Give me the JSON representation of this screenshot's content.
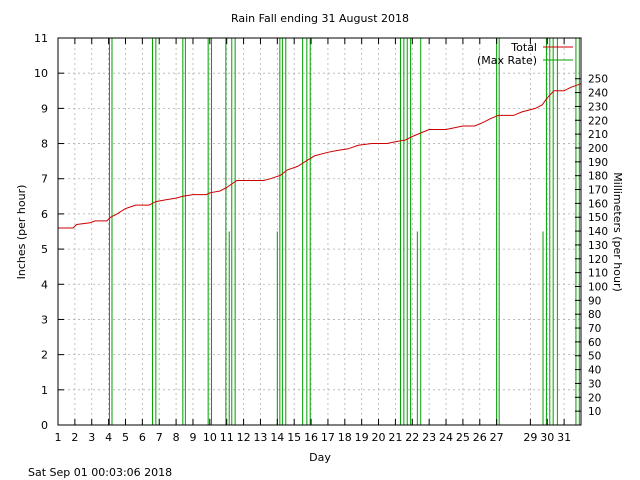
{
  "chart_data": {
    "type": "line",
    "title": "Rain Fall ending 31 August 2018",
    "xlabel": "Day",
    "ylabel": "Inches (per hour)",
    "y2label": "Millimeters (per hour)",
    "footer": "Sat Sep 01 00:03:06 2018",
    "xlim": [
      1,
      32
    ],
    "ylim": [
      0,
      11
    ],
    "y2lim": [
      0,
      279.4
    ],
    "x_ticks": [
      1,
      2,
      3,
      4,
      5,
      6,
      7,
      8,
      9,
      10,
      11,
      12,
      13,
      14,
      15,
      16,
      17,
      18,
      19,
      20,
      21,
      22,
      23,
      24,
      25,
      26,
      27,
      29,
      30,
      31
    ],
    "y_ticks": [
      0,
      1,
      2,
      3,
      4,
      5,
      6,
      7,
      8,
      9,
      10,
      11
    ],
    "y2_ticks": [
      10,
      20,
      30,
      40,
      50,
      60,
      70,
      80,
      90,
      100,
      110,
      120,
      130,
      140,
      150,
      160,
      170,
      180,
      190,
      200,
      210,
      220,
      230,
      240,
      250
    ],
    "grid": true,
    "legend_position": "top-right",
    "series": [
      {
        "name": "Total",
        "color": "#cc0000",
        "points": [
          [
            1,
            5.6
          ],
          [
            1.9,
            5.6
          ],
          [
            2.1,
            5.7
          ],
          [
            2.9,
            5.75
          ],
          [
            3.2,
            5.8
          ],
          [
            3.9,
            5.8
          ],
          [
            4.1,
            5.9
          ],
          [
            4.5,
            6.0
          ],
          [
            5.0,
            6.15
          ],
          [
            5.6,
            6.25
          ],
          [
            6.4,
            6.25
          ],
          [
            6.8,
            6.35
          ],
          [
            7.4,
            6.4
          ],
          [
            8.0,
            6.45
          ],
          [
            8.4,
            6.5
          ],
          [
            9.0,
            6.55
          ],
          [
            9.8,
            6.55
          ],
          [
            10.0,
            6.6
          ],
          [
            10.6,
            6.65
          ],
          [
            11.0,
            6.75
          ],
          [
            11.3,
            6.85
          ],
          [
            11.6,
            6.95
          ],
          [
            12.5,
            6.95
          ],
          [
            13.2,
            6.95
          ],
          [
            13.6,
            7.0
          ],
          [
            14.2,
            7.1
          ],
          [
            14.6,
            7.25
          ],
          [
            15.2,
            7.35
          ],
          [
            15.7,
            7.5
          ],
          [
            16.2,
            7.65
          ],
          [
            17.0,
            7.75
          ],
          [
            17.5,
            7.8
          ],
          [
            18.2,
            7.85
          ],
          [
            18.8,
            7.95
          ],
          [
            19.6,
            8.0
          ],
          [
            20.5,
            8.0
          ],
          [
            21.0,
            8.05
          ],
          [
            21.6,
            8.1
          ],
          [
            22.0,
            8.2
          ],
          [
            22.5,
            8.3
          ],
          [
            23.0,
            8.4
          ],
          [
            24.0,
            8.4
          ],
          [
            24.5,
            8.45
          ],
          [
            25.0,
            8.5
          ],
          [
            25.7,
            8.5
          ],
          [
            26.2,
            8.6
          ],
          [
            26.6,
            8.7
          ],
          [
            27.1,
            8.8
          ],
          [
            28.0,
            8.8
          ],
          [
            28.5,
            8.9
          ],
          [
            29.3,
            9.0
          ],
          [
            29.7,
            9.1
          ],
          [
            30.0,
            9.3
          ],
          [
            30.4,
            9.5
          ],
          [
            31.0,
            9.5
          ],
          [
            31.4,
            9.6
          ],
          [
            32,
            9.7
          ]
        ]
      },
      {
        "name": "(Max Rate)",
        "color": "#00a000",
        "spikes": [
          [
            4.05,
            11
          ],
          [
            4.2,
            11
          ],
          [
            6.6,
            11
          ],
          [
            6.8,
            11
          ],
          [
            8.4,
            11
          ],
          [
            8.55,
            11
          ],
          [
            9.9,
            11
          ],
          [
            10.1,
            11
          ],
          [
            10.95,
            11
          ],
          [
            11.15,
            5.5
          ],
          [
            11.3,
            11
          ],
          [
            11.5,
            11
          ],
          [
            14.0,
            5.5
          ],
          [
            14.15,
            11
          ],
          [
            14.3,
            11
          ],
          [
            14.5,
            11
          ],
          [
            15.5,
            11
          ],
          [
            15.75,
            11
          ],
          [
            15.95,
            11
          ],
          [
            21.3,
            11
          ],
          [
            21.5,
            11
          ],
          [
            21.7,
            11
          ],
          [
            21.9,
            11
          ],
          [
            22.3,
            5.5
          ],
          [
            22.5,
            11
          ],
          [
            27.0,
            11
          ],
          [
            27.15,
            11
          ],
          [
            29.75,
            5.5
          ],
          [
            29.95,
            11
          ],
          [
            30.15,
            11
          ],
          [
            30.35,
            11
          ],
          [
            30.6,
            11
          ],
          [
            31.7,
            11
          ],
          [
            31.9,
            11
          ]
        ]
      }
    ]
  }
}
